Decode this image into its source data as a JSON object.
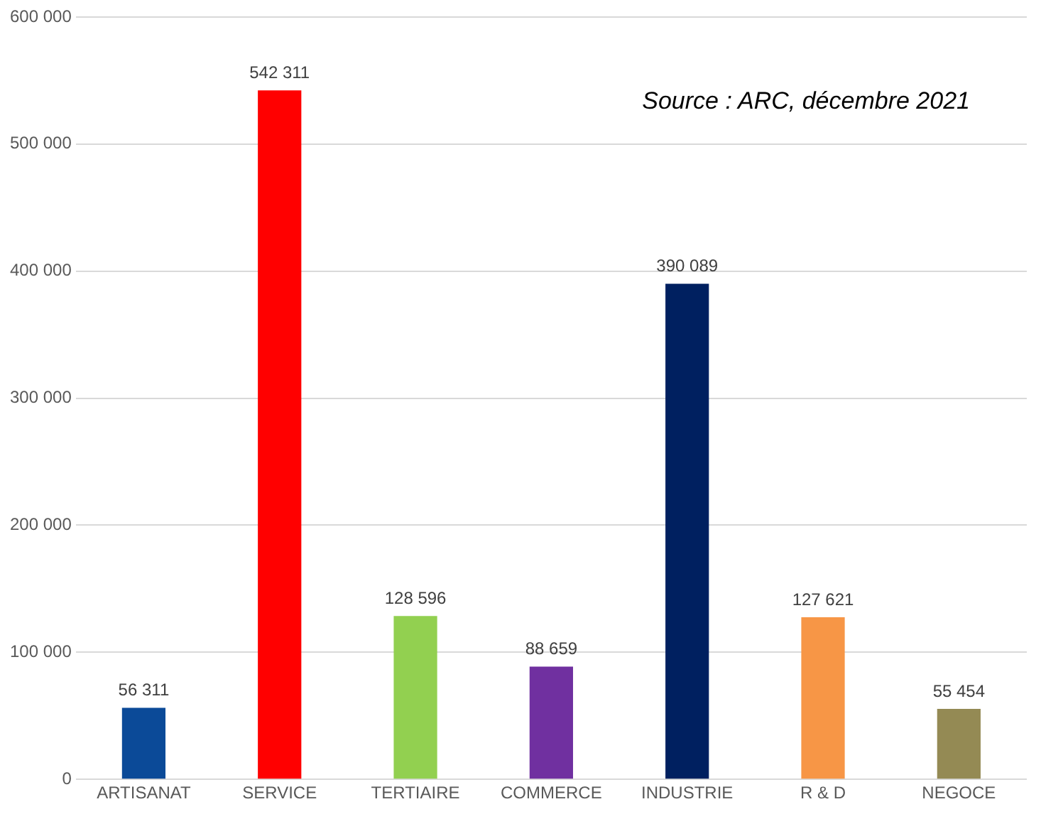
{
  "chart_data": {
    "type": "bar",
    "categories": [
      "ARTISANAT",
      "SERVICE",
      "TERTIAIRE",
      "COMMERCE",
      "INDUSTRIE",
      "R & D",
      "NEGOCE"
    ],
    "values": [
      56311,
      542311,
      128596,
      88659,
      390089,
      127621,
      55454
    ],
    "colors": [
      "#0b4a98",
      "#ff0000",
      "#92d050",
      "#7030a0",
      "#002060",
      "#f79646",
      "#948a54"
    ],
    "value_labels": [
      "56 311",
      "542 311",
      "128 596",
      "88 659",
      "390 089",
      "127 621",
      "55 454"
    ],
    "ylim": [
      0,
      600000
    ],
    "yticks": [
      {
        "value": 0,
        "label": "0"
      },
      {
        "value": 100000,
        "label": "100 000"
      },
      {
        "value": 200000,
        "label": "200 000"
      },
      {
        "value": 300000,
        "label": "300 000"
      },
      {
        "value": 400000,
        "label": "400 000"
      },
      {
        "value": 500000,
        "label": "500 000"
      },
      {
        "value": 600000,
        "label": "600 000"
      }
    ],
    "grid": "y",
    "legend": false,
    "annotations": [
      "Source : ARC, décembre 2021"
    ]
  }
}
